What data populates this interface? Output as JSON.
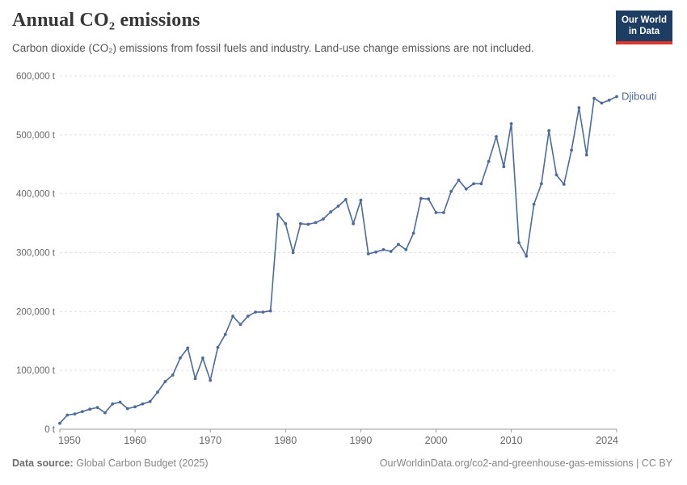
{
  "header": {
    "title": "Annual CO₂ emissions",
    "subtitle": "Carbon dioxide (CO₂) emissions from fossil fuels and industry. Land-use change emissions are not included."
  },
  "logo": {
    "line1": "Our World",
    "line2": "in Data",
    "bg": "#1d3d63",
    "accent": "#dd352b"
  },
  "footer": {
    "source_label": "Data source:",
    "source": "Global Carbon Budget (2025)",
    "credit": "OurWorldinData.org/co2-and-greenhouse-gas-emissions | CC BY"
  },
  "chart_data": {
    "type": "line",
    "title": "Annual CO₂ emissions",
    "entity": "Djibouti",
    "unit": "t",
    "series_label": "Djibouti",
    "x": [
      1950,
      1951,
      1952,
      1953,
      1954,
      1955,
      1956,
      1957,
      1958,
      1959,
      1960,
      1961,
      1962,
      1963,
      1964,
      1965,
      1966,
      1967,
      1968,
      1969,
      1970,
      1971,
      1972,
      1973,
      1974,
      1975,
      1976,
      1977,
      1978,
      1979,
      1980,
      1981,
      1982,
      1983,
      1984,
      1985,
      1986,
      1987,
      1988,
      1989,
      1990,
      1991,
      1992,
      1993,
      1994,
      1995,
      1996,
      1997,
      1998,
      1999,
      2000,
      2001,
      2002,
      2003,
      2004,
      2005,
      2006,
      2007,
      2008,
      2009,
      2010,
      2011,
      2012,
      2013,
      2014,
      2015,
      2016,
      2017,
      2018,
      2019,
      2020,
      2021,
      2022,
      2023,
      2024
    ],
    "values": [
      10000,
      24000,
      26000,
      30000,
      34000,
      37000,
      28000,
      43000,
      46000,
      35000,
      38000,
      43000,
      47000,
      63000,
      81000,
      92000,
      121000,
      138000,
      86000,
      121000,
      83000,
      139000,
      161000,
      192000,
      178000,
      192000,
      199000,
      199000,
      201000,
      365000,
      349000,
      300000,
      349000,
      348000,
      351000,
      357000,
      369000,
      379000,
      390000,
      349000,
      389000,
      298000,
      301000,
      305000,
      302000,
      314000,
      305000,
      333000,
      392000,
      391000,
      368000,
      368000,
      404000,
      423000,
      408000,
      417000,
      417000,
      455000,
      497000,
      446000,
      519000,
      317000,
      294000,
      382000,
      417000,
      507000,
      432000,
      416000,
      474000,
      546000,
      466000,
      562000,
      554000,
      559000,
      565000
    ],
    "xlabel": "",
    "ylabel": "",
    "ylim": [
      0,
      600000
    ],
    "xlim": [
      1950,
      2024
    ],
    "yticks": {
      "values": [
        0,
        100000,
        200000,
        300000,
        400000,
        500000,
        600000
      ],
      "labels": [
        "0 t",
        "100,000 t",
        "200,000 t",
        "300,000 t",
        "400,000 t",
        "500,000 t",
        "600,000 t"
      ]
    },
    "xticks": {
      "values": [
        1950,
        1960,
        1970,
        1980,
        1990,
        2000,
        2010,
        2024
      ],
      "labels": [
        "1950",
        "1960",
        "1970",
        "1980",
        "1990",
        "2000",
        "2010",
        "2024"
      ]
    },
    "grid": "horizontal-dashed",
    "legend_position": "end-of-line",
    "colors": {
      "line": "#4c6a9c",
      "grid": "#e2e2e2",
      "axis": "#999999",
      "tick_text": "#666666",
      "series_label": "#4c6a9c"
    }
  }
}
